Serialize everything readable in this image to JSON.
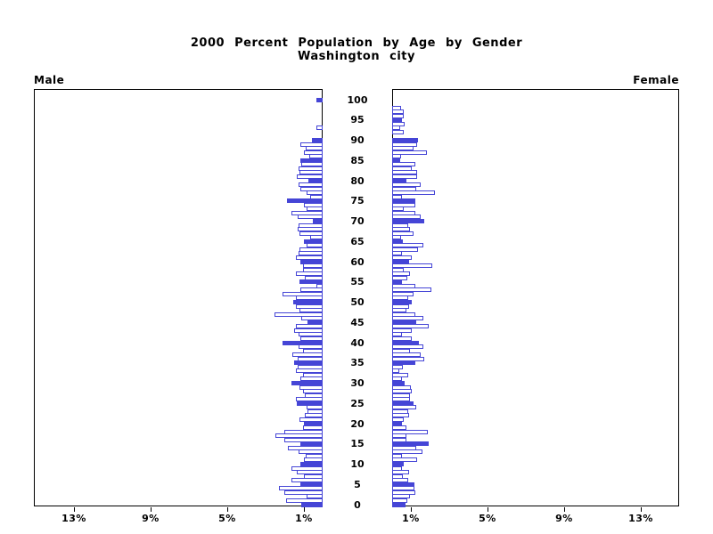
{
  "title": {
    "line1": "2000 Percent Population by Age by Gender",
    "line2": "Washington city"
  },
  "panel_labels": {
    "left": "Male",
    "right": "Female"
  },
  "colors": {
    "bar_outline": "#4545d6",
    "bar_fill_highlight": "#4545d6",
    "bar_fill_normal": "#ffffff",
    "axis": "#000000",
    "text": "#000000"
  },
  "chart_data": {
    "type": "bar",
    "subtype": "population-pyramid",
    "title": "2000 Percent Population by Age by Gender",
    "subtitle": "Washington city",
    "unit": "percent of total population",
    "age_axis": {
      "min": 0,
      "max": 100,
      "label_interval": 5
    },
    "x_axis": {
      "max_percent": 15,
      "ticks_percent": [
        1,
        5,
        9,
        13
      ],
      "tick_labels": [
        "1%",
        "5%",
        "9%",
        "13%"
      ]
    },
    "highlight_rule": "bars for ages divisible by 5 are filled solid blue; all other ages are white with blue outline",
    "legend_position": "none",
    "grid": false,
    "series": [
      {
        "name": "Male",
        "direction": "left",
        "values": [
          1.05,
          1.85,
          0.8,
          1.95,
          2.25,
          1.1,
          1.6,
          0.95,
          1.3,
          1.6,
          1.1,
          0.95,
          0.85,
          1.2,
          1.75,
          1.1,
          1.95,
          2.4,
          1.95,
          1.0,
          0.95,
          1.15,
          0.9,
          0.75,
          0.8,
          1.3,
          1.35,
          0.9,
          1.0,
          1.15,
          1.6,
          1.1,
          1.0,
          1.35,
          1.25,
          1.45,
          1.25,
          1.55,
          1.0,
          1.2,
          2.05,
          1.1,
          1.2,
          1.45,
          1.35,
          0.75,
          1.05,
          2.45,
          1.15,
          1.35,
          1.5,
          1.35,
          2.05,
          1.1,
          0.3,
          1.15,
          0.9,
          1.35,
          1.0,
          1.0,
          1.1,
          1.35,
          1.2,
          1.15,
          0.8,
          0.95,
          0.6,
          1.15,
          1.25,
          1.2,
          0.45,
          1.25,
          1.6,
          0.8,
          0.95,
          1.8,
          0.6,
          0.8,
          1.1,
          1.2,
          0.7,
          1.3,
          1.15,
          1.2,
          1.05,
          1.1,
          0.65,
          0.95,
          0.85,
          1.1,
          0.5,
          0,
          0,
          0.3,
          0,
          0,
          0,
          0,
          0,
          0,
          0.3
        ]
      },
      {
        "name": "Female",
        "direction": "right",
        "values": [
          0.65,
          0.73,
          0.9,
          1.15,
          1.1,
          1.12,
          0.8,
          0.52,
          0.84,
          0.46,
          0.57,
          1.27,
          0.46,
          1.55,
          1.19,
          1.86,
          0.7,
          0.68,
          1.81,
          0.68,
          0.47,
          0.57,
          0.84,
          0.81,
          1.19,
          1.09,
          0.9,
          0.88,
          0.99,
          0.93,
          0.6,
          0.47,
          0.81,
          0.34,
          0.53,
          1.15,
          1.61,
          1.43,
          0.88,
          1.58,
          1.35,
          0.99,
          0.47,
          0.99,
          1.84,
          1.19,
          1.58,
          1.16,
          0.68,
          0.84,
          1.0,
          0.8,
          1.09,
          2.0,
          1.16,
          0.45,
          0.75,
          0.88,
          0.57,
          2.05,
          0.84,
          1.0,
          0.45,
          1.3,
          1.58,
          0.53,
          0.42,
          1.09,
          0.88,
          0.78,
          1.65,
          1.43,
          1.16,
          0.57,
          1.16,
          1.16,
          0.45,
          2.2,
          1.2,
          1.45,
          0.68,
          1.24,
          1.24,
          0.96,
          1.16,
          0.39,
          0.43,
          1.78,
          1.05,
          1.24,
          1.32,
          0,
          0.54,
          0.39,
          0.59,
          0.47,
          0.54,
          0.54,
          0.43,
          0,
          0
        ]
      }
    ]
  }
}
